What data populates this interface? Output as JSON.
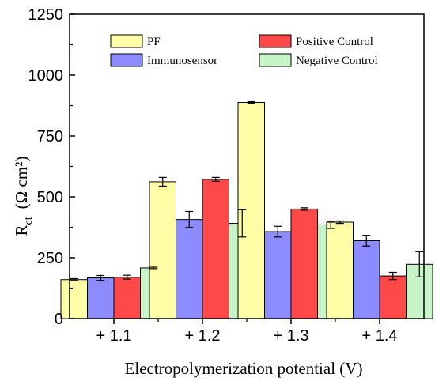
{
  "chart_data": {
    "type": "bar",
    "categories": [
      "+ 1.1",
      "+ 1.2",
      "+ 1.3",
      "+ 1.4"
    ],
    "xlabel": "Electropolymerization potential (V)",
    "ylabel": {
      "main": "R",
      "sub": "ct",
      "unit": "(Ω cm²)"
    },
    "ylim": [
      0,
      1250
    ],
    "yticks": [
      0,
      250,
      500,
      750,
      1000,
      1250
    ],
    "grid": false,
    "legend_position": "top",
    "series": [
      {
        "name": "PF",
        "color": "#ffffa8",
        "values": [
          160,
          562,
          888,
          396
        ],
        "errors": [
          4,
          18,
          3,
          5
        ]
      },
      {
        "name": "Immunosensor",
        "color": "#8c8cff",
        "values": [
          167,
          407,
          357,
          320
        ],
        "errors": [
          10,
          33,
          22,
          22
        ]
      },
      {
        "name": "Positive Control",
        "color": "#ff4848",
        "values": [
          170,
          572,
          450,
          175
        ],
        "errors": [
          8,
          8,
          5,
          15
        ]
      },
      {
        "name": "Negative Control",
        "color": "#c8f5c8",
        "values": [
          208,
          391,
          385,
          223
        ],
        "errors": [
          3,
          56,
          15,
          52
        ]
      }
    ]
  }
}
